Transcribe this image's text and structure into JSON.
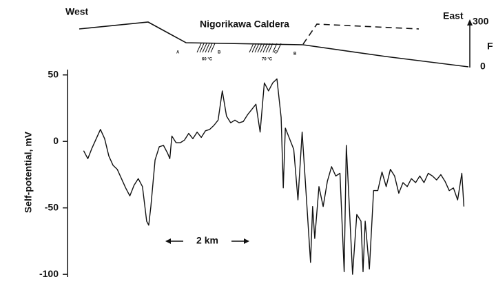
{
  "chart_data": {
    "type": "line",
    "ylabel": "Self-potential, mV",
    "annotations": {
      "west": "West",
      "east": "East",
      "caldera": "Nigorikawa Caldera",
      "relief_top": "300",
      "relief_unit": "F",
      "relief_zero": "0",
      "temp1": "60 °C",
      "temp2": "70 °C",
      "site1": "A",
      "site2": "B",
      "site3": "C",
      "site4": "B",
      "scale": "2 km"
    },
    "x": [
      0.4,
      0.5,
      0.6,
      0.7,
      0.8,
      0.9,
      1.0,
      1.1,
      1.2,
      1.3,
      1.4,
      1.5,
      1.6,
      1.7,
      1.8,
      1.9,
      1.95,
      2.0,
      2.1,
      2.2,
      2.3,
      2.4,
      2.45,
      2.5,
      2.6,
      2.7,
      2.8,
      2.9,
      3.0,
      3.1,
      3.2,
      3.3,
      3.4,
      3.5,
      3.6,
      3.7,
      3.8,
      3.9,
      4.0,
      4.1,
      4.2,
      4.3,
      4.4,
      4.5,
      4.6,
      4.7,
      4.8,
      4.9,
      5.0,
      5.1,
      5.15,
      5.2,
      5.3,
      5.4,
      5.5,
      5.6,
      5.7,
      5.8,
      5.85,
      5.9,
      6.0,
      6.1,
      6.2,
      6.3,
      6.4,
      6.5,
      6.6,
      6.65,
      6.7,
      6.8,
      6.9,
      7.0,
      7.05,
      7.1,
      7.2,
      7.3,
      7.4,
      7.5,
      7.6,
      7.7,
      7.8,
      7.9,
      8.0,
      8.1,
      8.2,
      8.3,
      8.4,
      8.5,
      8.6,
      8.7,
      8.8,
      8.9,
      9.0,
      9.1,
      9.2,
      9.3,
      9.4,
      9.45
    ],
    "values": [
      -7,
      -13,
      -5,
      2,
      9,
      2,
      -11,
      -18,
      -21,
      -28,
      -35,
      -41,
      -33,
      -28,
      -34,
      -60,
      -63,
      -49,
      -14,
      -4,
      -3,
      -9,
      -13,
      4,
      -1,
      -1,
      1,
      6,
      2,
      7,
      3,
      8,
      9,
      12,
      16,
      38,
      19,
      14,
      16,
      14,
      15,
      20,
      24,
      28,
      7,
      44,
      38,
      44,
      47,
      18,
      -35,
      10,
      2,
      -6,
      -44,
      7,
      -42,
      -91,
      -49,
      -73,
      -34,
      -49,
      -30,
      -19,
      -26,
      -24,
      -98,
      -3,
      -34,
      -100,
      -55,
      -60,
      -98,
      -60,
      -96,
      -37,
      -37,
      -23,
      -34,
      -21,
      -26,
      -39,
      -31,
      -34,
      -28,
      -31,
      -26,
      -31,
      -24,
      -26,
      -29,
      -25,
      -30,
      -37,
      -35,
      -44,
      -24,
      -49
    ],
    "color": "#111111",
    "xlim": [
      0,
      10
    ],
    "ylim": [
      -102,
      54
    ],
    "yticks": [
      50,
      0,
      -50,
      -100
    ]
  }
}
